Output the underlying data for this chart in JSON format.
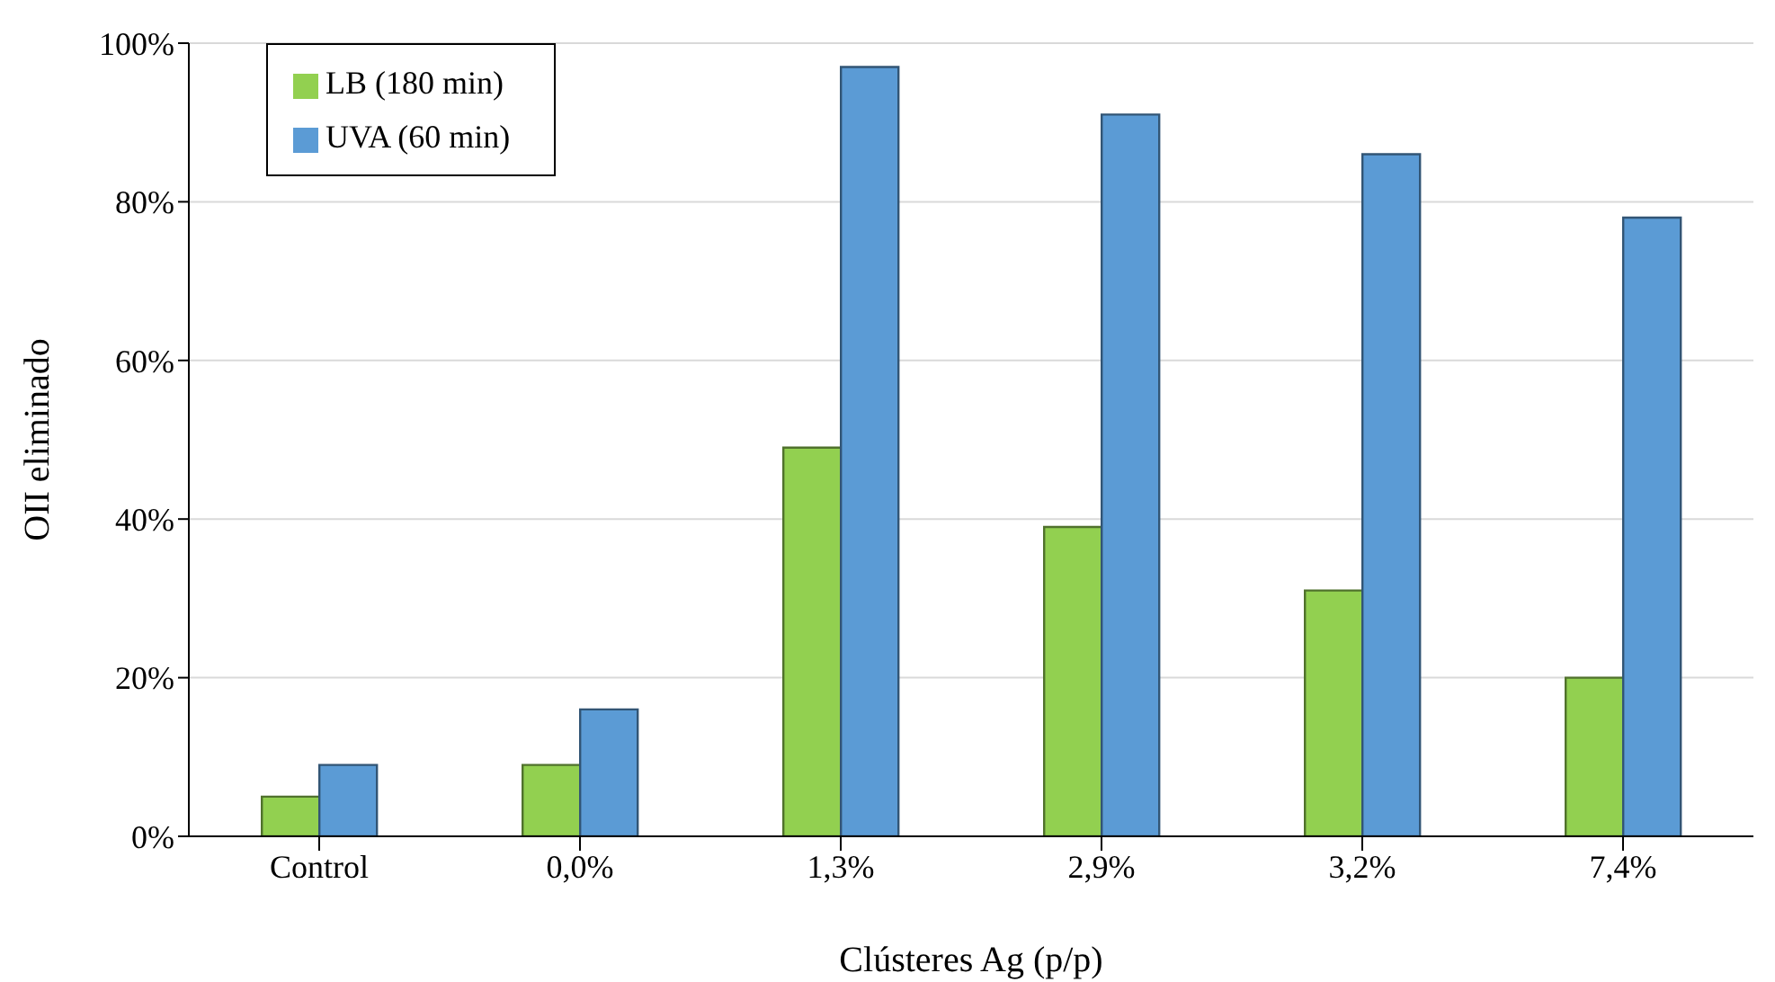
{
  "chart_data": {
    "type": "bar",
    "xlabel": "Clústeres Ag (p/p)",
    "ylabel": "OII eliminado",
    "categories": [
      "Control",
      "0,0%",
      "1,3%",
      "2,9%",
      "3,2%",
      "7,4%"
    ],
    "series": [
      {
        "name": "LB (180 min)",
        "color": "#92d050",
        "values": [
          5,
          9,
          49,
          39,
          31,
          20
        ]
      },
      {
        "name": "UVA (60 min)",
        "color": "#5b9bd5",
        "values": [
          9,
          16,
          97,
          91,
          86,
          78
        ]
      }
    ],
    "ylim": [
      0,
      100
    ],
    "yticks": [
      {
        "value": 0,
        "label": "0%"
      },
      {
        "value": 20,
        "label": "20%"
      },
      {
        "value": 40,
        "label": "40%"
      },
      {
        "value": 60,
        "label": "60%"
      },
      {
        "value": 80,
        "label": "80%"
      },
      {
        "value": 100,
        "label": "100%"
      }
    ],
    "grid": "y",
    "legend": "top left"
  }
}
